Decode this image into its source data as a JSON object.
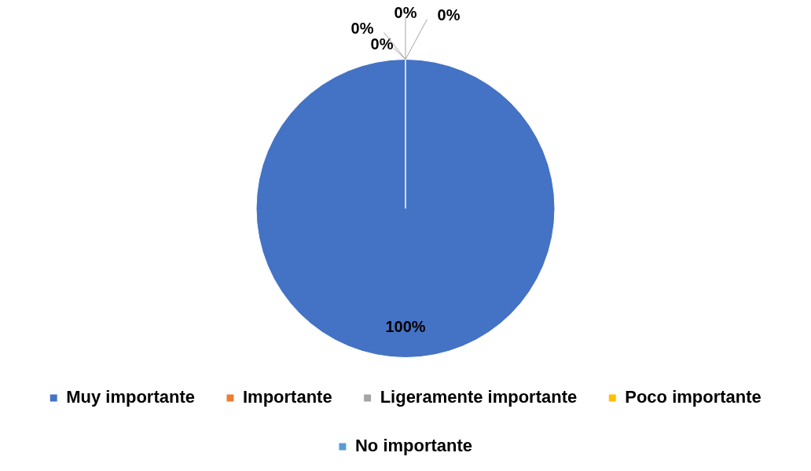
{
  "chart_data": {
    "type": "pie",
    "categories": [
      "Muy importante",
      "Importante",
      "Ligeramente importante",
      "Poco importante",
      "No importante"
    ],
    "values": [
      100,
      0,
      0,
      0,
      0
    ],
    "value_labels": [
      "100%",
      "0%",
      "0%",
      "0%",
      "0%"
    ],
    "colors": [
      "#4472c4",
      "#ed7d31",
      "#a5a5a5",
      "#ffc000",
      "#5b9bd5"
    ],
    "legend": "bottom"
  }
}
